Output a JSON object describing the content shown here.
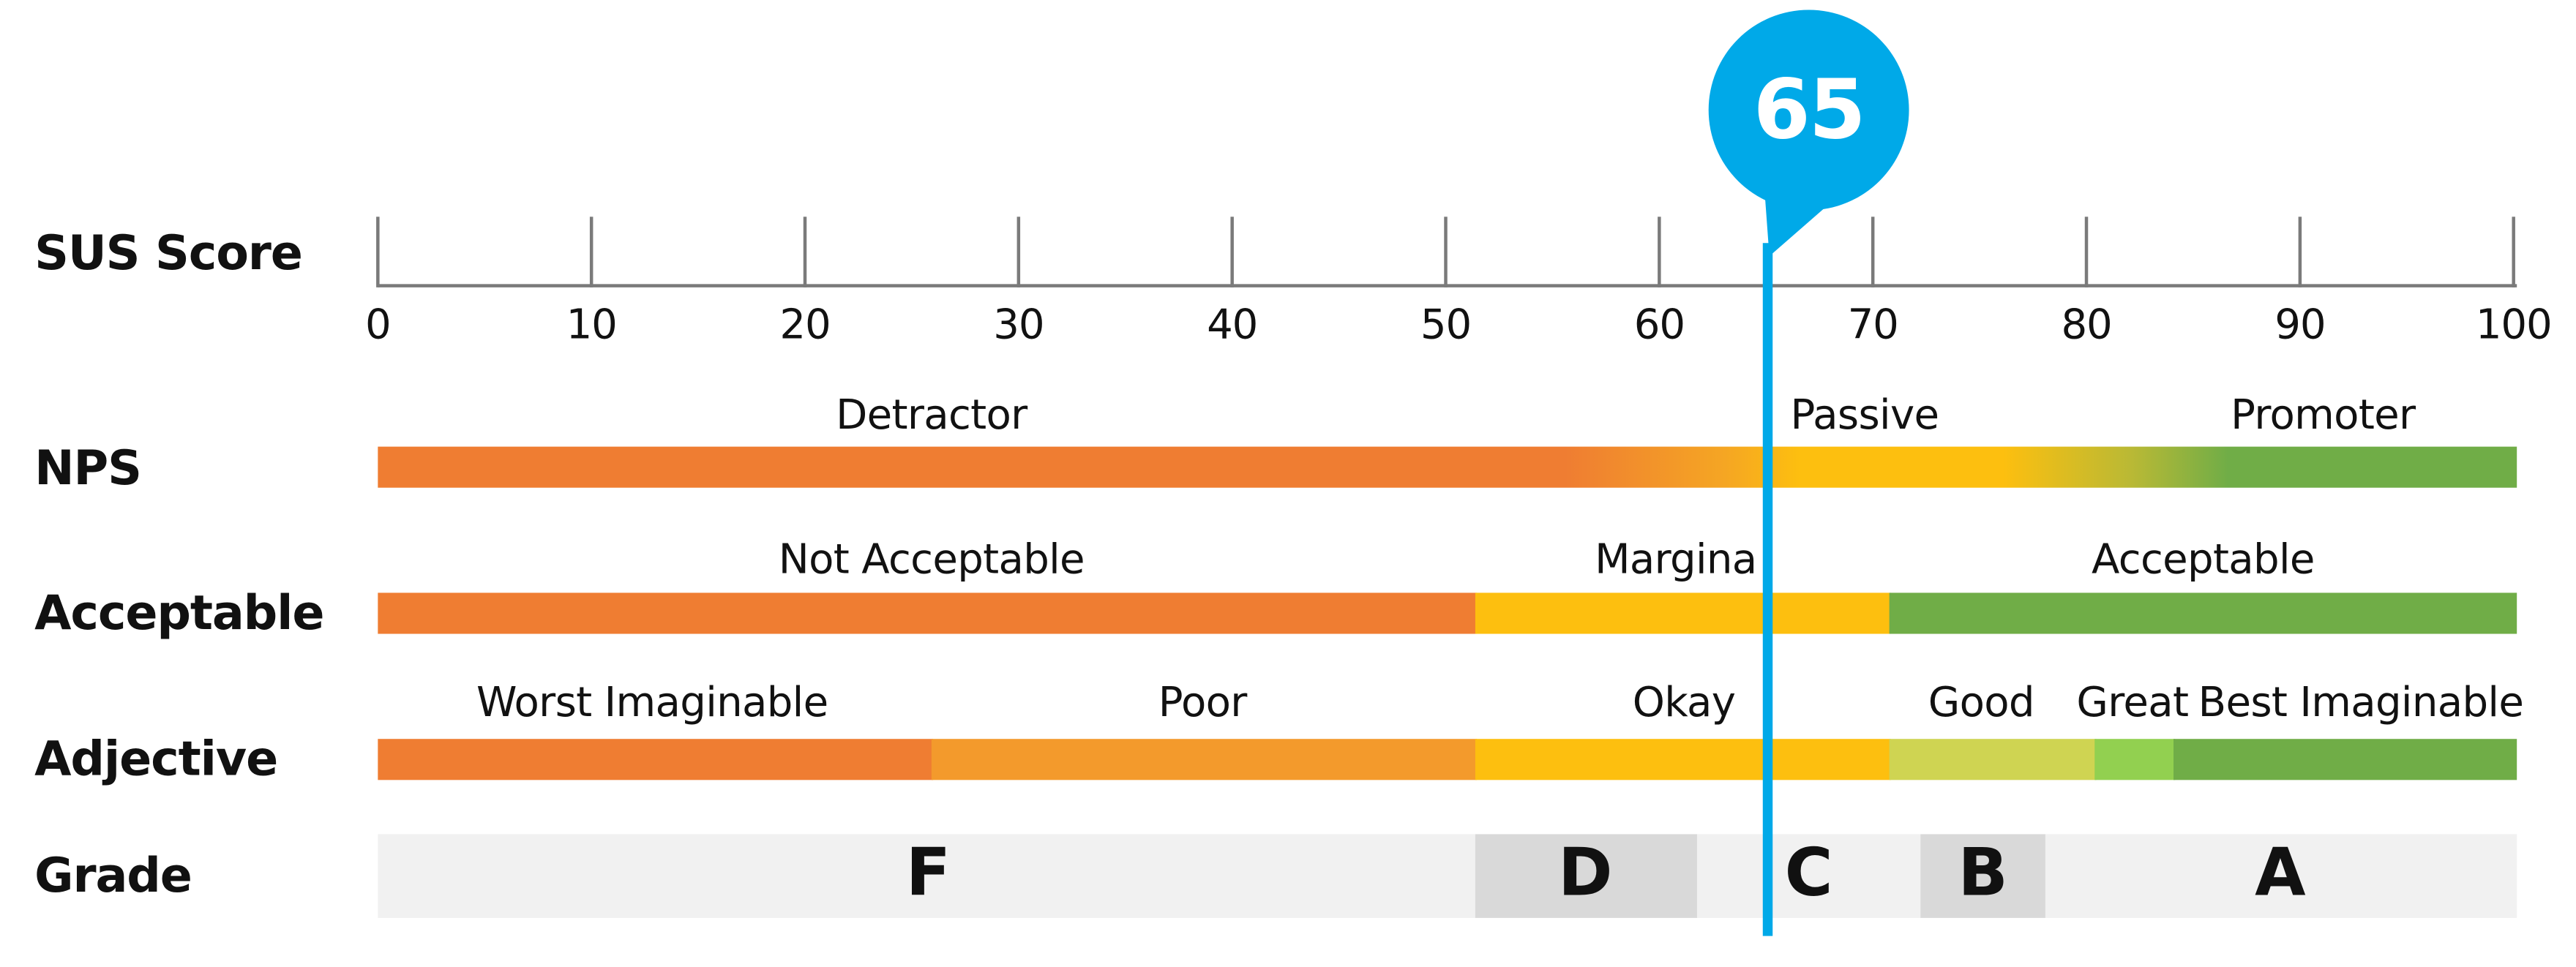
{
  "marker": {
    "value": "65"
  },
  "rows": {
    "sus": "SUS Score",
    "nps": "NPS",
    "acceptable": "Acceptable",
    "adjective": "Adjective",
    "grade": "Grade"
  },
  "scale": {
    "ticks": [
      "0",
      "10",
      "20",
      "30",
      "40",
      "50",
      "60",
      "70",
      "80",
      "90",
      "100"
    ]
  },
  "nps": {
    "detractor": "Detractor",
    "passive": "Passive",
    "promoter": "Promoter"
  },
  "acceptable": {
    "not_acceptable": "Not Acceptable",
    "marginal": "Margina",
    "acceptable": "Acceptable"
  },
  "adjective": {
    "worst": "Worst Imaginable",
    "poor": "Poor",
    "okay": "Okay",
    "good": "Good",
    "great": "Great",
    "best": "Best Imaginable"
  },
  "grades": {
    "f": "F",
    "d": "D",
    "c": "C",
    "b": "B",
    "a": "A"
  },
  "colors": {
    "orange": "#ef7d32",
    "light_orange": "#f39a2c",
    "yellow": "#fdbf0f",
    "green": "#70ad47",
    "yellow_green": "#cfd452",
    "bright_green": "#92d050",
    "marker_blue": "#00a9e8",
    "grade_bg": "#f1f1f1",
    "grade_dark": "#d9d9d9"
  }
}
